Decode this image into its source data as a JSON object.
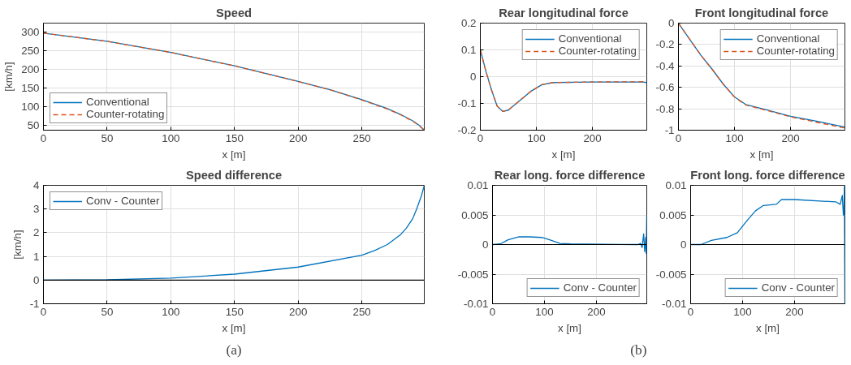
{
  "chart_data": [
    {
      "type": "line",
      "title": "Speed",
      "xlabel": "x [m]",
      "ylabel": "[km/h]",
      "xlim": [
        0,
        299
      ],
      "ylim": [
        37,
        325
      ],
      "xticks": [
        0,
        50,
        100,
        150,
        200,
        250
      ],
      "yticks": [
        50,
        100,
        150,
        200,
        250,
        300
      ],
      "grid": true,
      "legend": "bottom left",
      "x": [
        0,
        50,
        100,
        150,
        200,
        225,
        250,
        270,
        280,
        290,
        295,
        299
      ],
      "series": [
        {
          "name": "Conventional",
          "color": "#0072bd",
          "line_style": "solid",
          "values": [
            298,
            276,
            246,
            210,
            168,
            146,
            119,
            95,
            80,
            62,
            50,
            37
          ]
        },
        {
          "name": "Counter-rotating",
          "color": "#d95319",
          "line_style": "dashed",
          "values": [
            298,
            276,
            246,
            210,
            168,
            146,
            118,
            94,
            79,
            61,
            49,
            37
          ]
        }
      ]
    },
    {
      "type": "line",
      "title": "Speed difference",
      "xlabel": "x [m]",
      "ylabel": "[km/h]",
      "xlim": [
        0,
        299
      ],
      "ylim": [
        -1,
        4
      ],
      "xticks": [
        0,
        50,
        100,
        150,
        200,
        250
      ],
      "yticks": [
        -1,
        0,
        1,
        2,
        3,
        4
      ],
      "grid": true,
      "legend": "top left",
      "annotations": [
        "(a)"
      ],
      "ref_lines": [
        {
          "axis": "y",
          "value": 0,
          "color": "#000000"
        }
      ],
      "x": [
        0,
        50,
        100,
        150,
        200,
        250,
        260,
        270,
        280,
        285,
        290,
        293,
        295,
        297,
        299
      ],
      "series": [
        {
          "name": "Conv - Counter",
          "color": "#0072bd",
          "line_style": "solid",
          "values": [
            0,
            0.01,
            0.08,
            0.25,
            0.55,
            1.05,
            1.25,
            1.5,
            1.9,
            2.2,
            2.6,
            3.0,
            3.3,
            3.6,
            4.0
          ]
        }
      ]
    },
    {
      "type": "line",
      "title": "Rear longitudinal force",
      "xlabel": "x [m]",
      "xlim": [
        0,
        297
      ],
      "ylim": [
        -0.2,
        0.2
      ],
      "xticks": [
        0,
        100,
        200
      ],
      "yticks": [
        -0.2,
        -0.1,
        0,
        0.1,
        0.2
      ],
      "grid": true,
      "legend": "top right",
      "x": [
        0,
        10,
        20,
        30,
        40,
        50,
        70,
        90,
        110,
        130,
        200,
        290,
        297
      ],
      "series": [
        {
          "name": "Conventional",
          "color": "#0072bd",
          "line_style": "solid",
          "values": [
            0.1,
            0.02,
            -0.05,
            -0.11,
            -0.13,
            -0.125,
            -0.09,
            -0.055,
            -0.03,
            -0.022,
            -0.02,
            -0.02,
            -0.022
          ]
        },
        {
          "name": "Counter-rotating",
          "color": "#d95319",
          "line_style": "dashed",
          "values": [
            0.1,
            0.02,
            -0.05,
            -0.11,
            -0.13,
            -0.125,
            -0.09,
            -0.055,
            -0.03,
            -0.022,
            -0.02,
            -0.019,
            -0.021
          ]
        }
      ]
    },
    {
      "type": "line",
      "title": "Front longitudinal force",
      "xlabel": "x [m]",
      "xlim": [
        0,
        297
      ],
      "ylim": [
        -1,
        0
      ],
      "xticks": [
        0,
        100,
        200
      ],
      "yticks": [
        -1,
        -0.8,
        -0.6,
        -0.4,
        -0.2,
        0
      ],
      "grid": true,
      "legend": "top right",
      "x": [
        0,
        20,
        40,
        60,
        80,
        100,
        120,
        150,
        200,
        250,
        297
      ],
      "series": [
        {
          "name": "Conventional",
          "color": "#0072bd",
          "line_style": "solid",
          "values": [
            0,
            -0.15,
            -0.3,
            -0.43,
            -0.57,
            -0.69,
            -0.76,
            -0.8,
            -0.87,
            -0.92,
            -0.97
          ]
        },
        {
          "name": "Counter-rotating",
          "color": "#d95319",
          "line_style": "dashed",
          "values": [
            0,
            -0.15,
            -0.3,
            -0.43,
            -0.57,
            -0.69,
            -0.765,
            -0.805,
            -0.875,
            -0.93,
            -0.98
          ]
        }
      ]
    },
    {
      "type": "line",
      "title": "Rear long. force difference",
      "xlabel": "x [m]",
      "xlim": [
        0,
        297
      ],
      "ylim": [
        -0.01,
        0.01
      ],
      "xticks": [
        0,
        100,
        200
      ],
      "yticks": [
        -0.01,
        -0.005,
        0,
        0.005,
        0.01
      ],
      "grid": true,
      "legend": "bottom right",
      "annotations": [
        "(b)"
      ],
      "ref_lines": [
        {
          "axis": "y",
          "value": 0,
          "color": "#000000"
        }
      ],
      "x": [
        0,
        15,
        30,
        50,
        70,
        95,
        110,
        130,
        150,
        280,
        285,
        288,
        291,
        293,
        295,
        296,
        297
      ],
      "series": [
        {
          "name": "Conv - Counter",
          "color": "#0072bd",
          "line_style": "solid",
          "values": [
            0,
            0.0001,
            0.0008,
            0.0013,
            0.0013,
            0.0012,
            0.0008,
            0.0002,
            0.0001,
            0,
            0.0002,
            -0.0005,
            0.0018,
            -0.0012,
            0.0012,
            -0.0015,
            0.005
          ]
        }
      ]
    },
    {
      "type": "line",
      "title": "Front long. force difference",
      "xlabel": "x [m]",
      "xlim": [
        0,
        297
      ],
      "ylim": [
        -0.01,
        0.01
      ],
      "xticks": [
        0,
        100,
        200
      ],
      "yticks": [
        -0.01,
        -0.005,
        0,
        0.005,
        0.01
      ],
      "grid": true,
      "legend": "bottom right",
      "ref_lines": [
        {
          "axis": "y",
          "value": 0,
          "color": "#000000"
        }
      ],
      "x": [
        0,
        20,
        40,
        70,
        90,
        110,
        125,
        140,
        165,
        175,
        200,
        280,
        288,
        292,
        294,
        295,
        296,
        297
      ],
      "series": [
        {
          "name": "Conv - Counter",
          "color": "#0072bd",
          "line_style": "solid",
          "values": [
            0,
            0,
            0.0007,
            0.0012,
            0.002,
            0.0042,
            0.0057,
            0.0066,
            0.0068,
            0.0076,
            0.0076,
            0.0072,
            0.0068,
            0.0083,
            0.005,
            0.005,
            0.0098,
            -0.01
          ]
        }
      ]
    }
  ]
}
